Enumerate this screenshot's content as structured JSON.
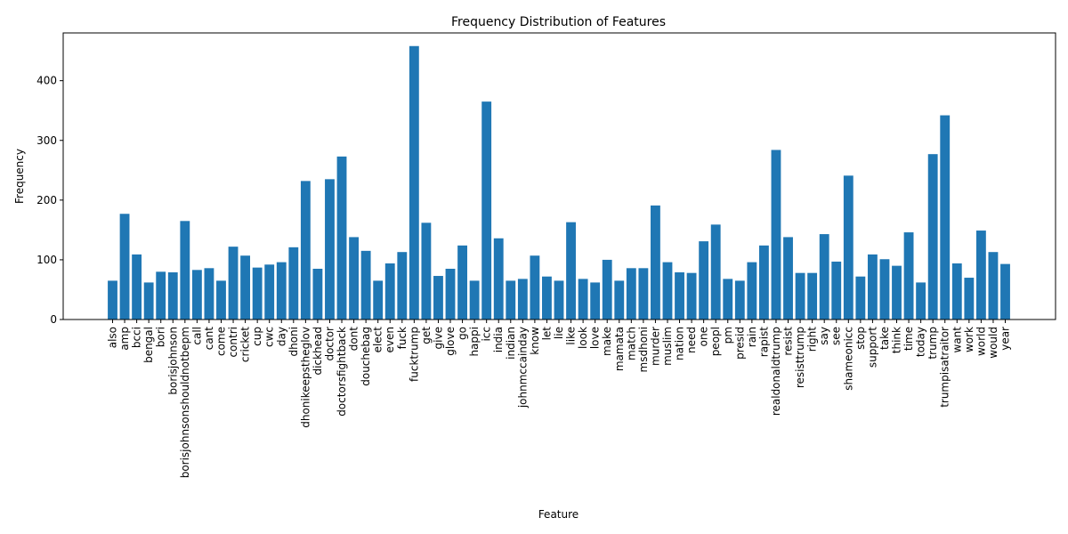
{
  "chart_data": {
    "type": "bar",
    "title": "Frequency Distribution of Features",
    "xlabel": "Feature",
    "ylabel": "Frequency",
    "ylim": [
      0,
      480
    ],
    "yticks": [
      0,
      100,
      200,
      300,
      400
    ],
    "bar_color": "#1f77b4",
    "grid": false,
    "categories": [
      "also",
      "amp",
      "bcci",
      "bengal",
      "bori",
      "borisjohnson",
      "borisjohnsonshouldnotbepm",
      "call",
      "cant",
      "come",
      "contri",
      "cricket",
      "cup",
      "cwc",
      "day",
      "dhoni",
      "dhonikeepstheglov",
      "dickhead",
      "doctor",
      "doctorsfightback",
      "dont",
      "douchebag",
      "elect",
      "even",
      "fuck",
      "fucktrump",
      "get",
      "give",
      "glove",
      "go",
      "happi",
      "icc",
      "india",
      "indian",
      "johnmccainday",
      "know",
      "let",
      "lie",
      "like",
      "look",
      "love",
      "make",
      "mamata",
      "match",
      "msdhoni",
      "murder",
      "muslim",
      "nation",
      "need",
      "one",
      "peopl",
      "pm",
      "presid",
      "rain",
      "rapist",
      "realdonaldtrump",
      "resist",
      "resisttrump",
      "right",
      "say",
      "see",
      "shameonicc",
      "stop",
      "support",
      "take",
      "think",
      "time",
      "today",
      "trump",
      "trumpisatraitor",
      "want",
      "work",
      "world",
      "would",
      "year"
    ],
    "values": [
      65,
      177,
      109,
      62,
      80,
      79,
      165,
      83,
      86,
      65,
      122,
      107,
      87,
      92,
      96,
      121,
      232,
      85,
      235,
      273,
      138,
      115,
      65,
      94,
      113,
      458,
      162,
      73,
      85,
      124,
      65,
      365,
      136,
      65,
      68,
      107,
      72,
      65,
      163,
      68,
      62,
      100,
      65,
      86,
      86,
      191,
      96,
      79,
      78,
      131,
      159,
      68,
      65,
      96,
      124,
      284,
      138,
      78,
      78,
      143,
      97,
      241,
      72,
      109,
      101,
      90,
      146,
      62,
      277,
      342,
      94,
      70,
      149,
      113,
      93
    ]
  }
}
